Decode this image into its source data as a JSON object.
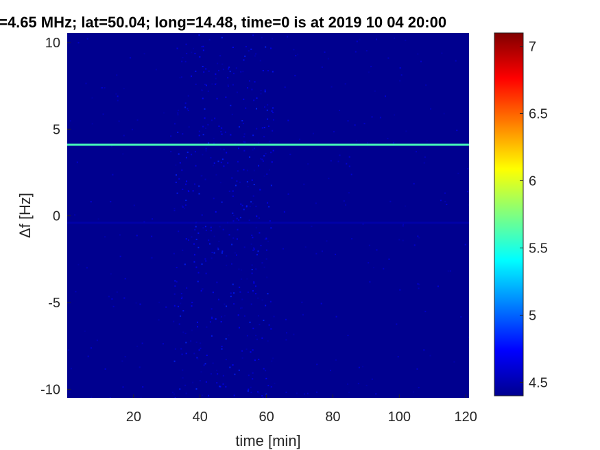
{
  "chart_data": {
    "type": "heatmap",
    "title": "=4.65 MHz;  lat=50.04; long=14.48, time=0 is at 2019 10 04 20:00",
    "xlabel": "time [min]",
    "ylabel": "Δf [Hz]",
    "xlim": [
      0,
      121
    ],
    "ylim": [
      -10.5,
      10.55
    ],
    "xticks": [
      20,
      40,
      60,
      80,
      100,
      120
    ],
    "yticks": [
      10,
      5,
      0,
      -5,
      -10
    ],
    "ytick_labels": [
      "10",
      "5",
      "0",
      "-5",
      "-10"
    ],
    "colormap": "jet",
    "clim": [
      4.4,
      7.1
    ],
    "colorbar_ticks": [
      7,
      6.5,
      6,
      5.5,
      5,
      4.5
    ],
    "colorbar_tick_labels": [
      "7",
      "6.5",
      "6",
      "5.5",
      "5",
      "4.5"
    ],
    "background_value": 4.45,
    "features": [
      {
        "kind": "horizontal-line",
        "delta_f": 4.1,
        "time_range": [
          0,
          121
        ],
        "value": 5.6
      },
      {
        "kind": "noise-band",
        "time_range": [
          32,
          62
        ],
        "value": 4.7
      },
      {
        "kind": "horizontal-line",
        "delta_f": -0.4,
        "time_range": [
          0,
          121
        ],
        "value": 4.55
      }
    ]
  }
}
